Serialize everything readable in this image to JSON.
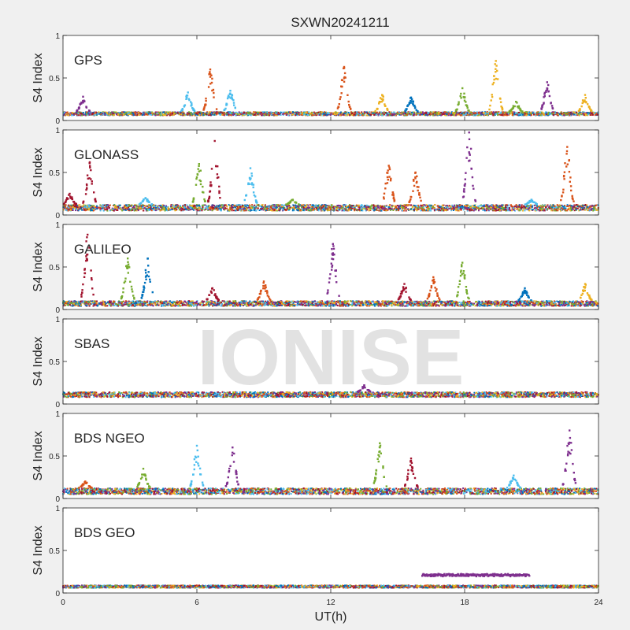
{
  "chart_data": {
    "type": "scatter",
    "title": "SXWN20241211",
    "xlabel": "UT(h)",
    "ylabel": "S4 Index",
    "xlim": [
      0,
      24
    ],
    "ylim": [
      0,
      1
    ],
    "x_ticks": [
      "0",
      "6",
      "12",
      "18",
      "24"
    ],
    "y_ticks": [
      "0",
      "0.5",
      "1"
    ],
    "watermark": "IONISE",
    "grid": false,
    "colors": [
      "#0072BD",
      "#D95319",
      "#EDB120",
      "#7E2F8E",
      "#77AC30",
      "#4DBEEE",
      "#A2142F"
    ],
    "panels": [
      {
        "label": "GPS",
        "baseline": [
          0.06,
          0.1
        ],
        "activity": [
          {
            "t": 0.9,
            "peak": 0.28,
            "color": "#7E2F8E"
          },
          {
            "t": 5.6,
            "peak": 0.33,
            "color": "#4DBEEE"
          },
          {
            "t": 6.6,
            "peak": 0.6,
            "color": "#D95319"
          },
          {
            "t": 7.5,
            "peak": 0.35,
            "color": "#4DBEEE"
          },
          {
            "t": 12.6,
            "peak": 0.63,
            "color": "#D95319"
          },
          {
            "t": 14.3,
            "peak": 0.3,
            "color": "#EDB120"
          },
          {
            "t": 15.6,
            "peak": 0.27,
            "color": "#0072BD"
          },
          {
            "t": 17.9,
            "peak": 0.38,
            "color": "#77AC30"
          },
          {
            "t": 19.4,
            "peak": 0.7,
            "color": "#EDB120"
          },
          {
            "t": 20.3,
            "peak": 0.22,
            "color": "#77AC30"
          },
          {
            "t": 21.7,
            "peak": 0.45,
            "color": "#7E2F8E"
          },
          {
            "t": 23.4,
            "peak": 0.3,
            "color": "#EDB120"
          }
        ]
      },
      {
        "label": "GLONASS",
        "baseline": [
          0.05,
          0.12
        ],
        "activity": [
          {
            "t": 0.3,
            "peak": 0.25,
            "color": "#A2142F"
          },
          {
            "t": 1.2,
            "peak": 0.62,
            "color": "#A2142F"
          },
          {
            "t": 3.7,
            "peak": 0.2,
            "color": "#4DBEEE"
          },
          {
            "t": 6.1,
            "peak": 0.6,
            "color": "#77AC30"
          },
          {
            "t": 6.8,
            "peak": 0.87,
            "color": "#A2142F"
          },
          {
            "t": 8.4,
            "peak": 0.55,
            "color": "#4DBEEE"
          },
          {
            "t": 10.3,
            "peak": 0.18,
            "color": "#77AC30"
          },
          {
            "t": 14.6,
            "peak": 0.58,
            "color": "#D95319"
          },
          {
            "t": 15.8,
            "peak": 0.5,
            "color": "#D95319"
          },
          {
            "t": 18.2,
            "peak": 0.97,
            "color": "#7E2F8E"
          },
          {
            "t": 21.0,
            "peak": 0.18,
            "color": "#4DBEEE"
          },
          {
            "t": 22.6,
            "peak": 0.8,
            "color": "#D95319"
          }
        ]
      },
      {
        "label": "GALILEO",
        "baseline": [
          0.04,
          0.1
        ],
        "activity": [
          {
            "t": 1.1,
            "peak": 0.88,
            "color": "#A2142F"
          },
          {
            "t": 2.9,
            "peak": 0.6,
            "color": "#77AC30"
          },
          {
            "t": 3.8,
            "peak": 0.6,
            "color": "#0072BD"
          },
          {
            "t": 6.7,
            "peak": 0.25,
            "color": "#A2142F"
          },
          {
            "t": 9.0,
            "peak": 0.33,
            "color": "#D95319"
          },
          {
            "t": 12.1,
            "peak": 0.77,
            "color": "#7E2F8E"
          },
          {
            "t": 15.3,
            "peak": 0.3,
            "color": "#A2142F"
          },
          {
            "t": 16.6,
            "peak": 0.38,
            "color": "#D95319"
          },
          {
            "t": 17.9,
            "peak": 0.55,
            "color": "#77AC30"
          },
          {
            "t": 20.7,
            "peak": 0.25,
            "color": "#0072BD"
          },
          {
            "t": 23.4,
            "peak": 0.3,
            "color": "#EDB120"
          }
        ]
      },
      {
        "label": "SBAS",
        "baseline": [
          0.08,
          0.14
        ],
        "activity": [
          {
            "t": 13.5,
            "peak": 0.22,
            "color": "#7E2F8E"
          }
        ]
      },
      {
        "label": "BDS NGEO",
        "baseline": [
          0.05,
          0.12
        ],
        "activity": [
          {
            "t": 1.0,
            "peak": 0.2,
            "color": "#D95319"
          },
          {
            "t": 3.6,
            "peak": 0.35,
            "color": "#77AC30"
          },
          {
            "t": 6.0,
            "peak": 0.62,
            "color": "#4DBEEE"
          },
          {
            "t": 7.6,
            "peak": 0.6,
            "color": "#7E2F8E"
          },
          {
            "t": 14.2,
            "peak": 0.65,
            "color": "#77AC30"
          },
          {
            "t": 15.6,
            "peak": 0.47,
            "color": "#A2142F"
          },
          {
            "t": 20.2,
            "peak": 0.27,
            "color": "#4DBEEE"
          },
          {
            "t": 22.7,
            "peak": 0.8,
            "color": "#7E2F8E"
          }
        ]
      },
      {
        "label": "BDS GEO",
        "baseline": [
          0.06,
          0.09
        ],
        "activity": [],
        "segment": {
          "start": 16.1,
          "end": 20.9,
          "value": 0.21,
          "color": "#7E2F8E"
        }
      }
    ]
  }
}
